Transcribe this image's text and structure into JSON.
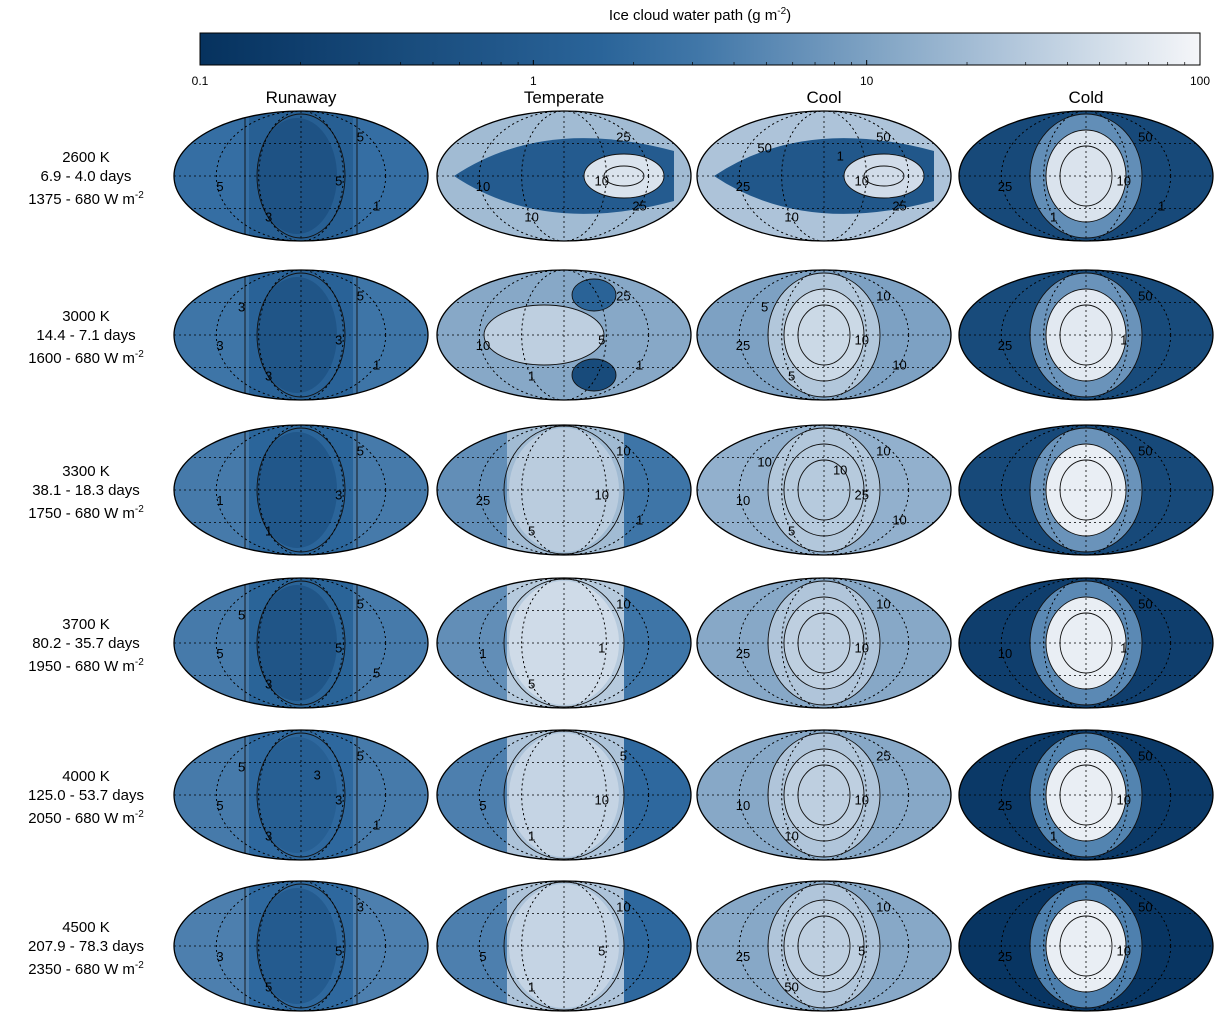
{
  "chart_data": {
    "type": "heatmap",
    "colorbar": {
      "title": "Ice cloud water path",
      "unit_base": "(g m",
      "unit_exp": "-2",
      "unit_close": ")",
      "scale": "log",
      "range": [
        0.1,
        100
      ],
      "ticks": [
        "0.1",
        "1",
        "10",
        "100"
      ],
      "tick_values": [
        0.1,
        1,
        10,
        100
      ],
      "color_low": "#06325e",
      "color_mid": "#2f6aa0",
      "color_high": "#f5f6f9"
    },
    "columns": [
      "Runaway",
      "Temperate",
      "Cool",
      "Cold"
    ],
    "rows": [
      {
        "line1": "2600 K",
        "line2": "6.9 - 4.0 days",
        "line3": "1375 - 680 W m",
        "exp": "-2"
      },
      {
        "line1": "3000 K",
        "line2": "14.4 - 7.1 days",
        "line3": "1600 - 680 W m",
        "exp": "-2"
      },
      {
        "line1": "3300 K",
        "line2": "38.1 - 18.3 days",
        "line3": "1750 - 680 W m",
        "exp": "-2"
      },
      {
        "line1": "3700 K",
        "line2": "80.2 - 35.7 days",
        "line3": "1950 - 680 W m",
        "exp": "-2"
      },
      {
        "line1": "4000 K",
        "line2": "125.0 - 53.7 days",
        "line3": "2050 - 680 W m",
        "exp": "-2"
      },
      {
        "line1": "4500 K",
        "line2": "207.9 - 78.3 days",
        "line3": "2350 - 680 W m",
        "exp": "-2"
      }
    ],
    "panels": [
      [
        {
          "pattern": "band",
          "bg": 2.5,
          "center": 0.6,
          "labels": [
            "5",
            "5",
            "5",
            "3",
            "1"
          ]
        },
        {
          "pattern": "wedge",
          "bg": 20,
          "center": 1.0,
          "spot": 60,
          "labels": [
            "25",
            "10",
            "10",
            "10",
            "25"
          ]
        },
        {
          "pattern": "wedge",
          "bg": 25,
          "center": 0.8,
          "spot": 50,
          "labels": [
            "50",
            "25",
            "10",
            "10",
            "25",
            "50",
            "1"
          ]
        },
        {
          "pattern": "dayside",
          "bg": 0.35,
          "center": 60,
          "labels": [
            "50",
            "25",
            "10",
            "1",
            "1"
          ]
        }
      ],
      [
        {
          "pattern": "band",
          "bg": 3,
          "center": 0.7,
          "labels": [
            "5",
            "3",
            "3",
            "3",
            "1",
            "3"
          ]
        },
        {
          "pattern": "lobes",
          "bg": 12,
          "center": 35,
          "labels": [
            "25",
            "10",
            "5",
            "1",
            "1"
          ]
        },
        {
          "pattern": "dayside",
          "bg": 10,
          "center": 45,
          "labels": [
            "10",
            "25",
            "10",
            "5",
            "10",
            "5"
          ]
        },
        {
          "pattern": "dayside",
          "bg": 0.4,
          "center": 70,
          "labels": [
            "50",
            "25",
            "1"
          ]
        }
      ],
      [
        {
          "pattern": "band",
          "bg": 3.5,
          "center": 0.8,
          "labels": [
            "5",
            "1",
            "3",
            "1"
          ]
        },
        {
          "pattern": "band2",
          "bg": 20,
          "center": 3,
          "labels": [
            "10",
            "25",
            "10",
            "5",
            "1"
          ]
        },
        {
          "pattern": "dayside",
          "bg": 15,
          "center": 30,
          "labels": [
            "10",
            "10",
            "25",
            "5",
            "10",
            "10",
            "10"
          ]
        },
        {
          "pattern": "dayside",
          "bg": 0.35,
          "center": 80,
          "labels": [
            "50"
          ]
        }
      ],
      [
        {
          "pattern": "band",
          "bg": 3.5,
          "center": 0.7,
          "labels": [
            "5",
            "5",
            "5",
            "3",
            "5",
            "5"
          ]
        },
        {
          "pattern": "band2",
          "bg": 30,
          "center": 3,
          "labels": [
            "10",
            "1",
            "1",
            "5"
          ]
        },
        {
          "pattern": "dayside",
          "bg": 12,
          "center": 35,
          "labels": [
            "10",
            "25",
            "10"
          ]
        },
        {
          "pattern": "dayside",
          "bg": 0.2,
          "center": 80,
          "labels": [
            "50",
            "10",
            "1"
          ]
        }
      ],
      [
        {
          "pattern": "band",
          "bg": 3.5,
          "center": 1.2,
          "labels": [
            "5",
            "5",
            "3",
            "3",
            "1",
            "5",
            "3"
          ]
        },
        {
          "pattern": "band2",
          "bg": 25,
          "center": 2,
          "labels": [
            "5",
            "5",
            "10",
            "1"
          ]
        },
        {
          "pattern": "dayside",
          "bg": 12,
          "center": 35,
          "labels": [
            "25",
            "10",
            "10",
            "10"
          ]
        },
        {
          "pattern": "dayside",
          "bg": 0.15,
          "center": 80,
          "labels": [
            "50",
            "25",
            "10",
            "1"
          ]
        }
      ],
      [
        {
          "pattern": "band",
          "bg": 4,
          "center": 1.0,
          "labels": [
            "3",
            "3",
            "5",
            "5"
          ]
        },
        {
          "pattern": "band2",
          "bg": 25,
          "center": 2,
          "labels": [
            "10",
            "5",
            "5",
            "1"
          ]
        },
        {
          "pattern": "dayside",
          "bg": 12,
          "center": 35,
          "labels": [
            "10",
            "25",
            "5",
            "50"
          ]
        },
        {
          "pattern": "dayside",
          "bg": 0.12,
          "center": 80,
          "labels": [
            "50",
            "25",
            "10"
          ]
        }
      ]
    ]
  }
}
